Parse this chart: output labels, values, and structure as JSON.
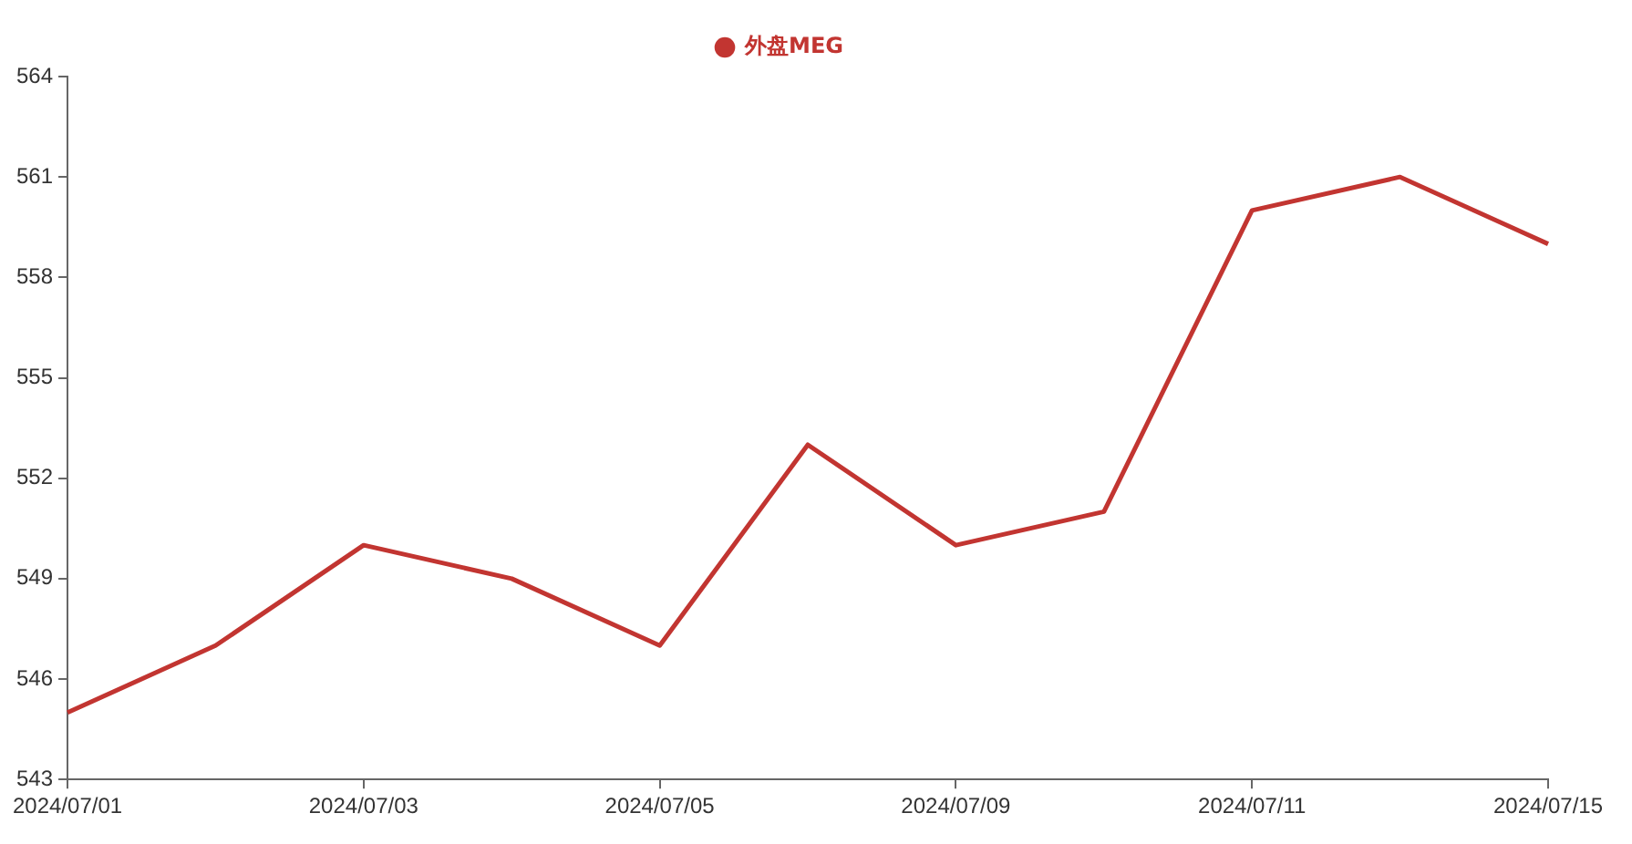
{
  "chart_data": {
    "type": "line",
    "categories": [
      "2024/07/01",
      null,
      "2024/07/03",
      null,
      "2024/07/05",
      null,
      "2024/07/09",
      null,
      "2024/07/11",
      null,
      "2024/07/15"
    ],
    "series": [
      {
        "name": "外盘MEG",
        "color": "#c23531",
        "values": [
          545,
          547,
          550,
          549,
          547,
          553,
          550,
          551,
          560,
          561,
          559
        ]
      }
    ],
    "ylim": [
      543,
      564
    ],
    "yticks": [
      543,
      546,
      549,
      552,
      555,
      558,
      561,
      564
    ],
    "grid": false,
    "legend": "top",
    "marker": "none",
    "line_style": "solid"
  }
}
